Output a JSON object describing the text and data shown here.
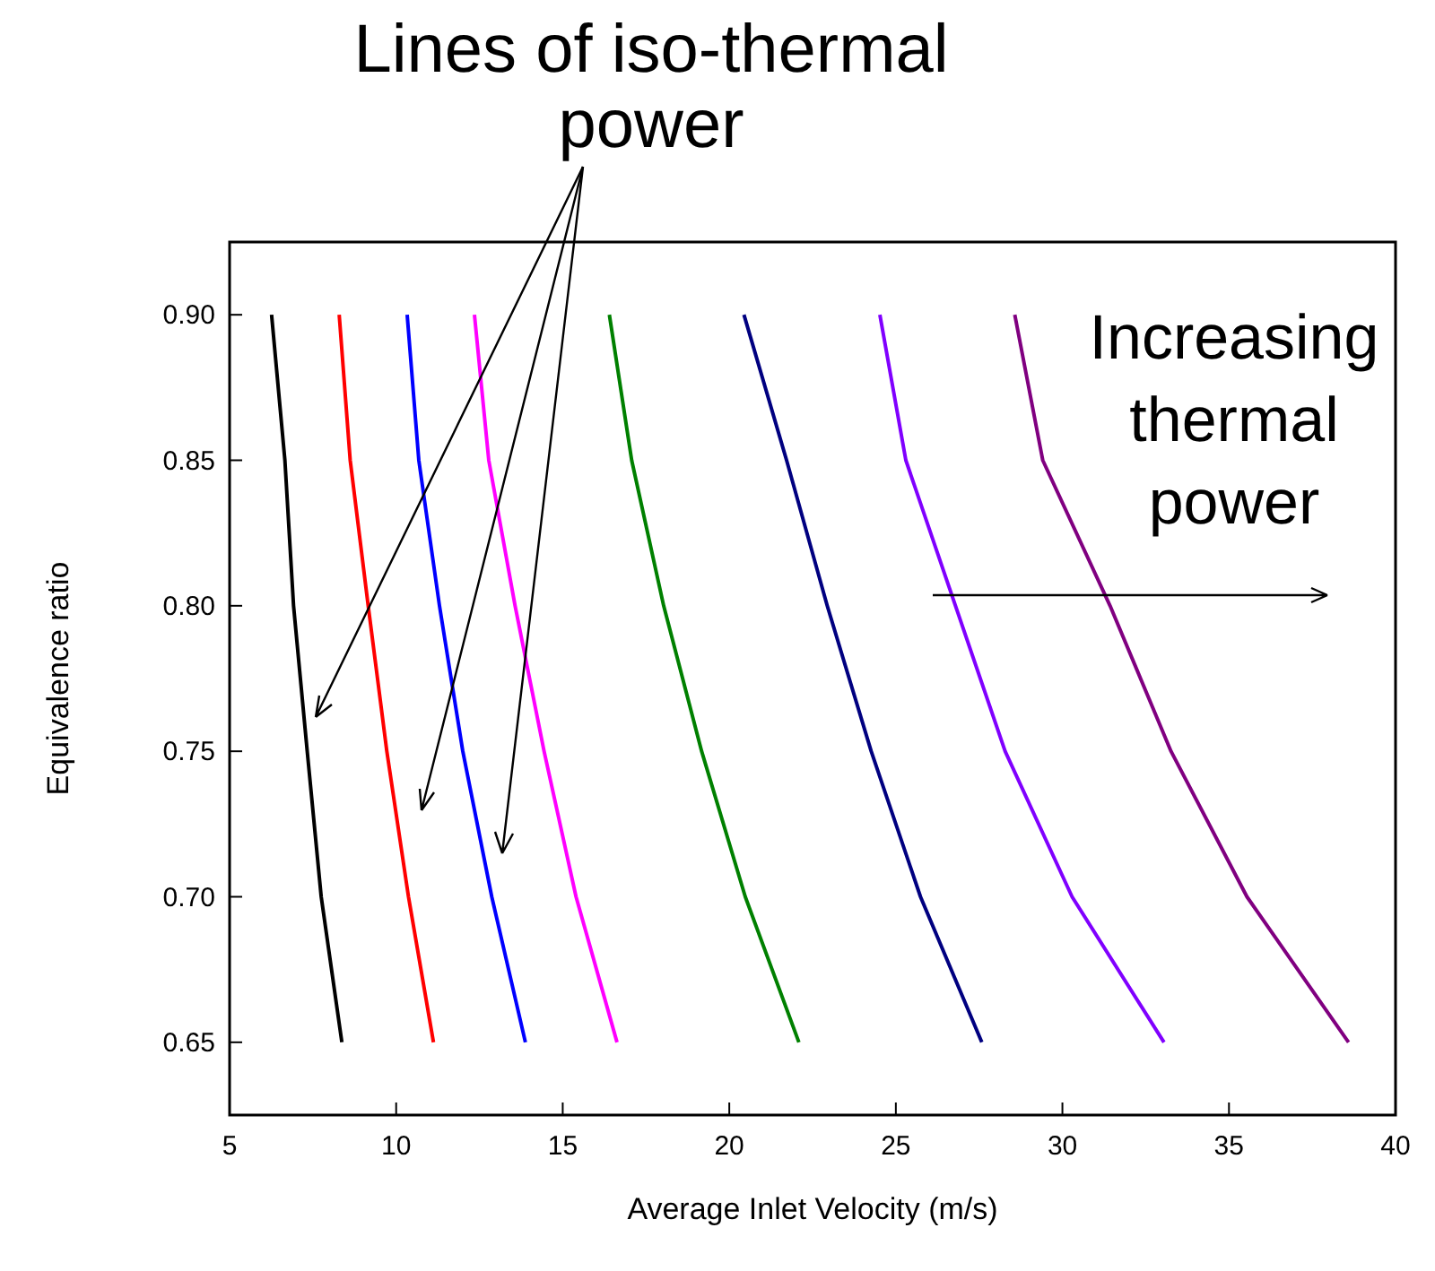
{
  "chart_data": {
    "type": "line",
    "xlabel": "Average Inlet Velocity (m/s)",
    "ylabel": "Equivalence ratio",
    "annotations": [
      "Lines of iso-thermal power",
      "Increasing thermal power"
    ],
    "xlim": [
      5,
      40
    ],
    "xticks": [
      5,
      10,
      15,
      20,
      25,
      30,
      35,
      40
    ],
    "ylim": [
      0.625,
      0.925
    ],
    "yticks": [
      {
        "value": 0.65,
        "label": "0.65"
      },
      {
        "value": 0.7,
        "label": "0.70"
      },
      {
        "value": 0.75,
        "label": "0.75"
      },
      {
        "value": 0.8,
        "label": "0.80"
      },
      {
        "value": 0.85,
        "label": "0.85"
      },
      {
        "value": 0.9,
        "label": "0.90"
      }
    ],
    "grid": false,
    "line_style": "solid",
    "series": [
      {
        "color": "#000000",
        "x": [
          6.26,
          6.66,
          6.92,
          7.33,
          7.75,
          8.37
        ],
        "values": [
          0.9,
          0.85,
          0.8,
          0.75,
          0.7,
          0.65
        ]
      },
      {
        "color": "#ff0000",
        "x": [
          8.29,
          8.62,
          9.16,
          9.72,
          10.37,
          11.12
        ],
        "values": [
          0.9,
          0.85,
          0.8,
          0.75,
          0.7,
          0.65
        ]
      },
      {
        "color": "#0000ff",
        "x": [
          10.33,
          10.68,
          11.3,
          12.0,
          12.87,
          13.88
        ],
        "values": [
          0.9,
          0.85,
          0.8,
          0.75,
          0.7,
          0.65
        ]
      },
      {
        "color": "#ff00ff",
        "x": [
          12.35,
          12.78,
          13.57,
          14.44,
          15.4,
          16.63
        ],
        "values": [
          0.9,
          0.85,
          0.8,
          0.75,
          0.7,
          0.65
        ]
      },
      {
        "color": "#008000",
        "x": [
          16.4,
          17.07,
          18.03,
          19.17,
          20.48,
          22.09
        ],
        "values": [
          0.9,
          0.85,
          0.8,
          0.75,
          0.7,
          0.65
        ]
      },
      {
        "color": "#000080",
        "x": [
          20.44,
          21.72,
          22.94,
          24.26,
          25.74,
          27.58
        ],
        "values": [
          0.9,
          0.85,
          0.8,
          0.75,
          0.7,
          0.65
        ]
      },
      {
        "color": "#8000ff",
        "x": [
          24.52,
          25.3,
          26.79,
          28.28,
          30.29,
          33.05
        ],
        "values": [
          0.9,
          0.85,
          0.8,
          0.75,
          0.7,
          0.65
        ]
      },
      {
        "color": "#800080",
        "x": [
          28.57,
          29.41,
          31.43,
          33.26,
          35.54,
          38.59
        ],
        "values": [
          0.9,
          0.85,
          0.8,
          0.75,
          0.7,
          0.65
        ]
      }
    ]
  }
}
